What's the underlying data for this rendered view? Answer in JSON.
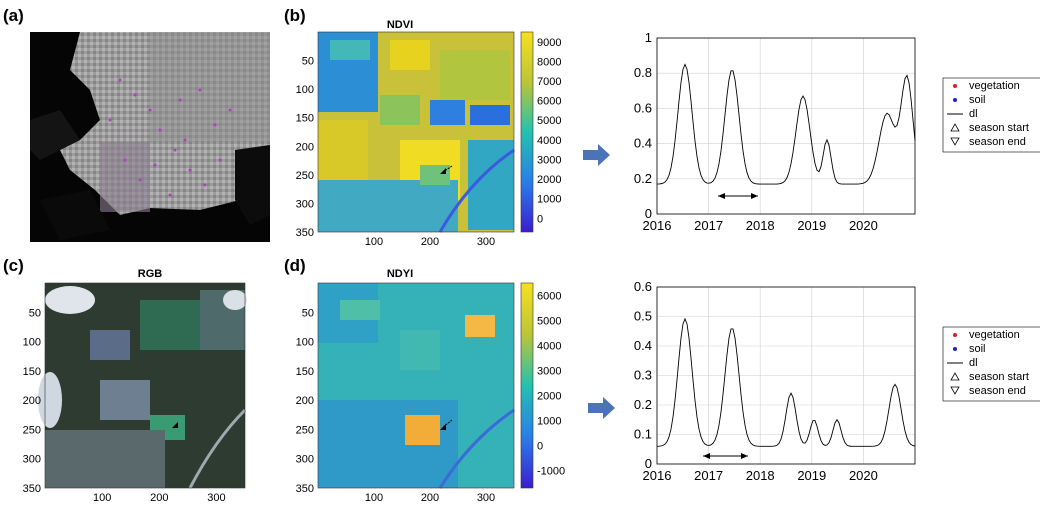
{
  "panels": {
    "a": {
      "label": "(a)"
    },
    "b": {
      "label": "(b)",
      "title": "NDVI",
      "axis_ticks": [
        "50",
        "100",
        "150",
        "200",
        "250",
        "300",
        "350"
      ],
      "x_ticks": [
        "100",
        "200",
        "300"
      ],
      "colorbar_ticks": [
        "9000",
        "8000",
        "7000",
        "6000",
        "5000",
        "4000",
        "3000",
        "2000",
        "1000",
        "0"
      ]
    },
    "c": {
      "label": "(c)",
      "title": "RGB",
      "axis_ticks": [
        "50",
        "100",
        "150",
        "200",
        "250",
        "300",
        "350"
      ],
      "x_ticks": [
        "100",
        "200",
        "300"
      ]
    },
    "d": {
      "label": "(d)",
      "title": "NDYI",
      "axis_ticks": [
        "50",
        "100",
        "150",
        "200",
        "250",
        "300",
        "350"
      ],
      "x_ticks": [
        "100",
        "200",
        "300"
      ],
      "colorbar_ticks": [
        "6000",
        "5000",
        "4000",
        "3000",
        "2000",
        "1000",
        "0",
        "-1000"
      ]
    }
  },
  "chart_data": [
    {
      "type": "line",
      "x_ticks": [
        "2016",
        "2017",
        "2018",
        "2019",
        "2020"
      ],
      "y_ticks": [
        "0",
        "0.2",
        "0.4",
        "0.6",
        "0.8",
        "1"
      ],
      "xlim": [
        2016,
        2021
      ],
      "ylim": [
        0,
        1
      ],
      "grid": true,
      "legend": [
        "vegetation",
        "soil",
        "dl",
        "season start",
        "season end"
      ],
      "legend_position": "right",
      "colors": {
        "vegetation": "#e02020",
        "soil": "#1f1fcf",
        "dl": "#000000"
      }
    },
    {
      "type": "line",
      "x_ticks": [
        "2016",
        "2017",
        "2018",
        "2019",
        "2020"
      ],
      "y_ticks": [
        "0",
        "0.1",
        "0.2",
        "0.3",
        "0.4",
        "0.5",
        "0.6"
      ],
      "xlim": [
        2016,
        2021
      ],
      "ylim": [
        0,
        0.6
      ],
      "grid": true,
      "legend": [
        "vegetation",
        "soil",
        "dl",
        "season start",
        "season end"
      ],
      "legend_position": "right",
      "colors": {
        "vegetation": "#e02020",
        "soil": "#1f1fcf",
        "dl": "#000000"
      }
    }
  ]
}
